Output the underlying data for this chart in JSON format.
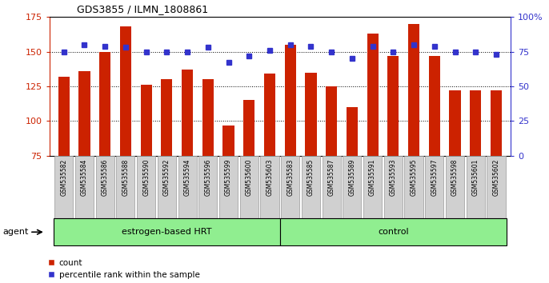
{
  "title": "GDS3855 / ILMN_1808861",
  "samples": [
    "GSM535582",
    "GSM535584",
    "GSM535586",
    "GSM535588",
    "GSM535590",
    "GSM535592",
    "GSM535594",
    "GSM535596",
    "GSM535599",
    "GSM535600",
    "GSM535603",
    "GSM535583",
    "GSM535585",
    "GSM535587",
    "GSM535589",
    "GSM535591",
    "GSM535593",
    "GSM535595",
    "GSM535597",
    "GSM535598",
    "GSM535601",
    "GSM535602"
  ],
  "bar_values": [
    132,
    136,
    150,
    168,
    126,
    130,
    137,
    130,
    97,
    115,
    134,
    155,
    135,
    125,
    110,
    163,
    147,
    170,
    147,
    122,
    122,
    122
  ],
  "blue_values": [
    75,
    80,
    79,
    78,
    75,
    75,
    75,
    78,
    67,
    72,
    76,
    80,
    79,
    75,
    70,
    79,
    75,
    80,
    79,
    75,
    75,
    73
  ],
  "ylim_left": [
    75,
    175
  ],
  "ylim_right": [
    0,
    100
  ],
  "yticks_left": [
    75,
    100,
    125,
    150,
    175
  ],
  "yticks_right": [
    0,
    25,
    50,
    75,
    100
  ],
  "grid_lines": [
    100,
    125,
    150
  ],
  "group1_label": "estrogen-based HRT",
  "group1_count": 11,
  "group2_label": "control",
  "group2_count": 11,
  "agent_label": "agent",
  "legend_count_label": "count",
  "legend_pct_label": "percentile rank within the sample",
  "bar_color": "#cc2200",
  "blue_color": "#3333cc",
  "group_bg": "#90ee90",
  "bar_bottom": 75,
  "label_bg": "#d0d0d0"
}
